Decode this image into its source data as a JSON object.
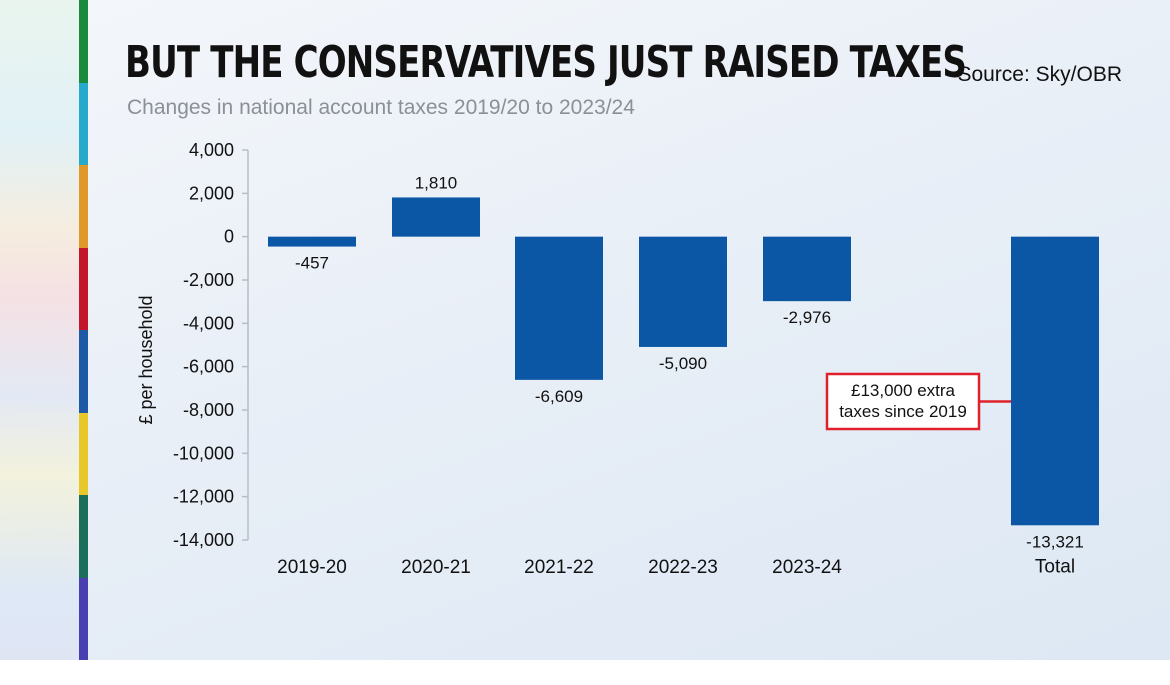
{
  "title": "BUT THE CONSERVATIVES JUST RAISED TAXES",
  "source": "Source: Sky/OBR",
  "subtitle": "Changes in national account taxes 2019/20 to 2023/24",
  "side_strip_colors": [
    "#1a8a3c",
    "#27a9cc",
    "#e0982a",
    "#c4162a",
    "#1c5aa6",
    "#e8c72a",
    "#1a6e5a",
    "#4a3fb0"
  ],
  "chart_data": {
    "type": "bar",
    "categories": [
      "2019-20",
      "2020-21",
      "2021-22",
      "2022-23",
      "2023-24",
      "Total"
    ],
    "values": [
      -457,
      1810,
      -6609,
      -5090,
      -2976,
      -13321
    ],
    "value_labels": [
      "-457",
      "1,810",
      "-6,609",
      "-5,090",
      "-2,976",
      "-13,321"
    ],
    "title": "BUT THE CONSERVATIVES JUST RAISED TAXES",
    "subtitle": "Changes in national account taxes 2019/20 to 2023/24",
    "ylabel": "£ per household",
    "xlabel": "",
    "ylim": [
      -14000,
      4000
    ],
    "yticks": [
      4000,
      2000,
      0,
      -2000,
      -4000,
      -6000,
      -8000,
      -10000,
      -12000,
      -14000
    ],
    "ytick_labels": [
      "4,000",
      "2,000",
      "0",
      "-2,000",
      "-4,000",
      "-6,000",
      "-8,000",
      "-10,000",
      "-12,000",
      "-14,000"
    ],
    "bar_color": "#0b56a5",
    "grid": false,
    "annotation": {
      "lines": [
        "£13,000 extra",
        "taxes since 2019"
      ],
      "target_category": "Total",
      "border_color": "#e0202a"
    }
  }
}
